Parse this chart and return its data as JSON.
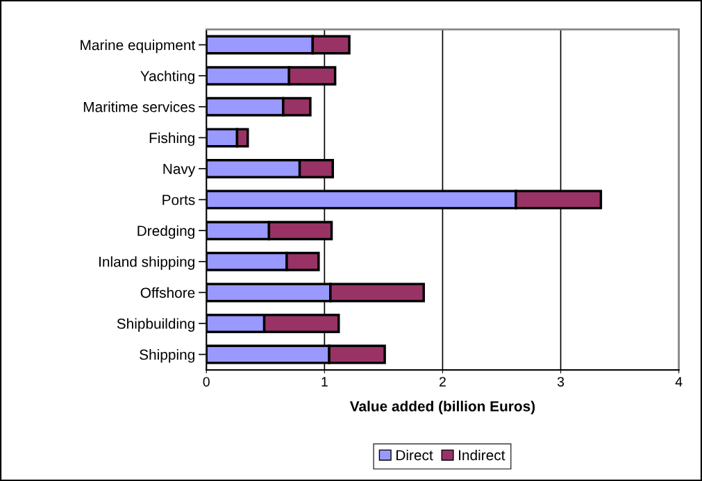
{
  "chart_data": {
    "type": "bar",
    "orientation": "horizontal",
    "stacked": true,
    "xlabel": "Value added (billion Euros)",
    "categories": [
      "Marine equipment",
      "Yachting",
      "Maritime services",
      "Fishing",
      "Navy",
      "Ports",
      "Dredging",
      "Inland shipping",
      "Offshore",
      "Shipbuilding",
      "Shipping"
    ],
    "series": [
      {
        "name": "Direct",
        "color": "#9999ff",
        "values": [
          0.9,
          0.7,
          0.65,
          0.26,
          0.79,
          2.62,
          0.53,
          0.68,
          1.05,
          0.49,
          1.04
        ]
      },
      {
        "name": "Indirect",
        "color": "#993366",
        "values": [
          0.31,
          0.39,
          0.23,
          0.09,
          0.28,
          0.72,
          0.53,
          0.27,
          0.79,
          0.63,
          0.47
        ]
      }
    ],
    "xlim": [
      0,
      4
    ],
    "xticks": [
      0,
      1,
      2,
      3,
      4
    ],
    "grid": "x",
    "legend": "bottom"
  }
}
